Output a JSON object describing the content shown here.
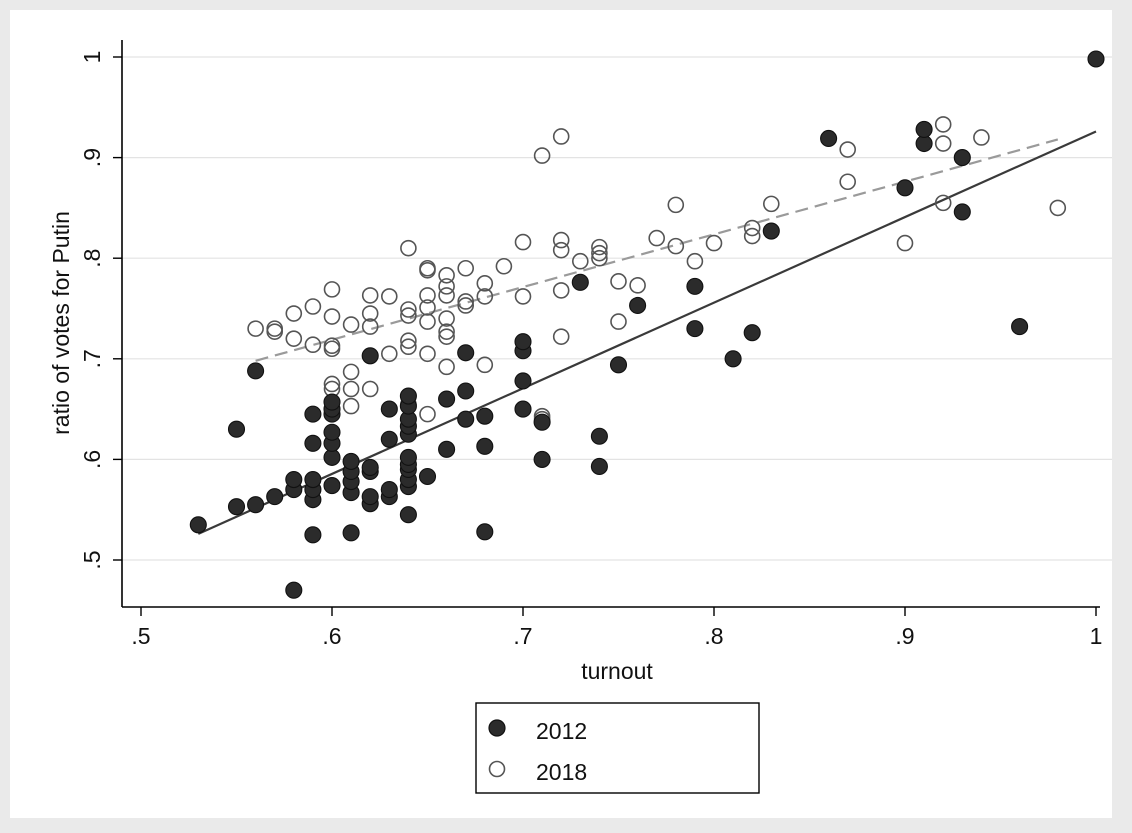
{
  "chart_data": {
    "type": "scatter",
    "xlabel": "turnout",
    "ylabel": "ratio of votes for Putin",
    "xlim": [
      0.5,
      1.0
    ],
    "ylim": [
      0.5,
      1.0
    ],
    "x_ticks": [
      0.5,
      0.6,
      0.7,
      0.8,
      0.9,
      1.0
    ],
    "x_tick_labels": [
      ".5",
      ".6",
      ".7",
      ".8",
      ".9",
      "1"
    ],
    "y_ticks": [
      0.5,
      0.6,
      0.7,
      0.8,
      0.9,
      1.0
    ],
    "y_tick_labels": [
      ".5",
      ".6",
      ".7",
      ".8",
      ".9",
      "1"
    ],
    "grid": "horizontal",
    "legend_position": "bottom",
    "colors": {
      "plot_background": "#ffffff",
      "outer_background": "#eaeaea",
      "gridline": "#e3e3e3",
      "marker_2012": "#2b2b2b",
      "marker_2018": "#555555",
      "fit_2012": "#3a3a3a",
      "fit_2018": "#9a9a9a"
    },
    "series": [
      {
        "name": "2012",
        "marker": "filled-circle",
        "points": [
          [
            0.53,
            0.535
          ],
          [
            0.55,
            0.63
          ],
          [
            0.55,
            0.553
          ],
          [
            0.56,
            0.555
          ],
          [
            0.56,
            0.688
          ],
          [
            0.57,
            0.563
          ],
          [
            0.58,
            0.47
          ],
          [
            0.58,
            0.57
          ],
          [
            0.58,
            0.58
          ],
          [
            0.59,
            0.525
          ],
          [
            0.59,
            0.56
          ],
          [
            0.59,
            0.57
          ],
          [
            0.59,
            0.58
          ],
          [
            0.59,
            0.616
          ],
          [
            0.59,
            0.645
          ],
          [
            0.6,
            0.574
          ],
          [
            0.6,
            0.602
          ],
          [
            0.6,
            0.616
          ],
          [
            0.6,
            0.627
          ],
          [
            0.6,
            0.645
          ],
          [
            0.6,
            0.65
          ],
          [
            0.6,
            0.657
          ],
          [
            0.61,
            0.527
          ],
          [
            0.61,
            0.567
          ],
          [
            0.61,
            0.578
          ],
          [
            0.61,
            0.588
          ],
          [
            0.61,
            0.598
          ],
          [
            0.62,
            0.556
          ],
          [
            0.62,
            0.563
          ],
          [
            0.62,
            0.588
          ],
          [
            0.62,
            0.592
          ],
          [
            0.62,
            0.703
          ],
          [
            0.63,
            0.563
          ],
          [
            0.63,
            0.57
          ],
          [
            0.63,
            0.62
          ],
          [
            0.63,
            0.65
          ],
          [
            0.64,
            0.545
          ],
          [
            0.64,
            0.573
          ],
          [
            0.64,
            0.58
          ],
          [
            0.64,
            0.59
          ],
          [
            0.64,
            0.595
          ],
          [
            0.64,
            0.602
          ],
          [
            0.64,
            0.625
          ],
          [
            0.64,
            0.633
          ],
          [
            0.64,
            0.64
          ],
          [
            0.64,
            0.653
          ],
          [
            0.64,
            0.663
          ],
          [
            0.65,
            0.583
          ],
          [
            0.66,
            0.61
          ],
          [
            0.66,
            0.66
          ],
          [
            0.67,
            0.64
          ],
          [
            0.67,
            0.668
          ],
          [
            0.67,
            0.706
          ],
          [
            0.68,
            0.528
          ],
          [
            0.68,
            0.613
          ],
          [
            0.68,
            0.643
          ],
          [
            0.7,
            0.65
          ],
          [
            0.7,
            0.678
          ],
          [
            0.7,
            0.708
          ],
          [
            0.7,
            0.717
          ],
          [
            0.71,
            0.6
          ],
          [
            0.71,
            0.637
          ],
          [
            0.73,
            0.776
          ],
          [
            0.74,
            0.593
          ],
          [
            0.74,
            0.623
          ],
          [
            0.75,
            0.694
          ],
          [
            0.76,
            0.753
          ],
          [
            0.79,
            0.73
          ],
          [
            0.79,
            0.772
          ],
          [
            0.81,
            0.7
          ],
          [
            0.82,
            0.726
          ],
          [
            0.83,
            0.827
          ],
          [
            0.86,
            0.919
          ],
          [
            0.9,
            0.87
          ],
          [
            0.91,
            0.914
          ],
          [
            0.91,
            0.928
          ],
          [
            0.93,
            0.9
          ],
          [
            0.93,
            0.846
          ],
          [
            0.96,
            0.732
          ],
          [
            1.0,
            0.998
          ]
        ],
        "fit": {
          "x": [
            0.53,
            1.0
          ],
          "y": [
            0.526,
            0.926
          ]
        }
      },
      {
        "name": "2018",
        "marker": "hollow-circle",
        "points": [
          [
            0.56,
            0.73
          ],
          [
            0.57,
            0.727
          ],
          [
            0.57,
            0.73
          ],
          [
            0.58,
            0.72
          ],
          [
            0.58,
            0.745
          ],
          [
            0.59,
            0.714
          ],
          [
            0.59,
            0.752
          ],
          [
            0.6,
            0.67
          ],
          [
            0.6,
            0.675
          ],
          [
            0.6,
            0.71
          ],
          [
            0.6,
            0.713
          ],
          [
            0.6,
            0.742
          ],
          [
            0.6,
            0.769
          ],
          [
            0.61,
            0.653
          ],
          [
            0.61,
            0.67
          ],
          [
            0.61,
            0.687
          ],
          [
            0.61,
            0.734
          ],
          [
            0.62,
            0.67
          ],
          [
            0.62,
            0.732
          ],
          [
            0.62,
            0.745
          ],
          [
            0.62,
            0.763
          ],
          [
            0.63,
            0.705
          ],
          [
            0.63,
            0.762
          ],
          [
            0.64,
            0.655
          ],
          [
            0.64,
            0.712
          ],
          [
            0.64,
            0.718
          ],
          [
            0.64,
            0.743
          ],
          [
            0.64,
            0.749
          ],
          [
            0.64,
            0.81
          ],
          [
            0.65,
            0.645
          ],
          [
            0.65,
            0.705
          ],
          [
            0.65,
            0.737
          ],
          [
            0.65,
            0.751
          ],
          [
            0.65,
            0.763
          ],
          [
            0.65,
            0.788
          ],
          [
            0.65,
            0.79
          ],
          [
            0.66,
            0.692
          ],
          [
            0.66,
            0.722
          ],
          [
            0.66,
            0.727
          ],
          [
            0.66,
            0.74
          ],
          [
            0.66,
            0.763
          ],
          [
            0.66,
            0.772
          ],
          [
            0.66,
            0.783
          ],
          [
            0.67,
            0.753
          ],
          [
            0.67,
            0.757
          ],
          [
            0.67,
            0.79
          ],
          [
            0.68,
            0.694
          ],
          [
            0.68,
            0.762
          ],
          [
            0.68,
            0.775
          ],
          [
            0.69,
            0.792
          ],
          [
            0.7,
            0.762
          ],
          [
            0.7,
            0.816
          ],
          [
            0.71,
            0.64
          ],
          [
            0.71,
            0.643
          ],
          [
            0.71,
            0.902
          ],
          [
            0.72,
            0.722
          ],
          [
            0.72,
            0.768
          ],
          [
            0.72,
            0.808
          ],
          [
            0.72,
            0.818
          ],
          [
            0.72,
            0.921
          ],
          [
            0.73,
            0.797
          ],
          [
            0.74,
            0.8
          ],
          [
            0.74,
            0.805
          ],
          [
            0.74,
            0.811
          ],
          [
            0.75,
            0.737
          ],
          [
            0.75,
            0.777
          ],
          [
            0.76,
            0.773
          ],
          [
            0.77,
            0.82
          ],
          [
            0.78,
            0.812
          ],
          [
            0.78,
            0.853
          ],
          [
            0.79,
            0.797
          ],
          [
            0.8,
            0.815
          ],
          [
            0.82,
            0.822
          ],
          [
            0.82,
            0.83
          ],
          [
            0.83,
            0.854
          ],
          [
            0.87,
            0.876
          ],
          [
            0.87,
            0.908
          ],
          [
            0.9,
            0.815
          ],
          [
            0.92,
            0.855
          ],
          [
            0.92,
            0.914
          ],
          [
            0.92,
            0.933
          ],
          [
            0.94,
            0.92
          ],
          [
            0.98,
            0.85
          ]
        ],
        "fit": {
          "x": [
            0.56,
            0.98
          ],
          "y": [
            0.698,
            0.918
          ]
        }
      }
    ]
  }
}
